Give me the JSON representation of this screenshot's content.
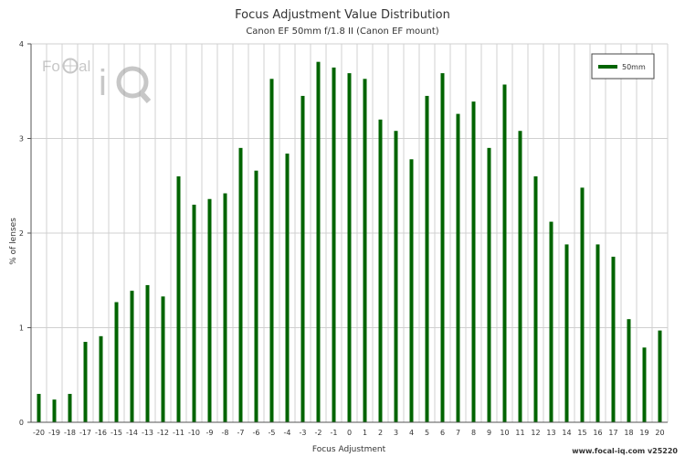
{
  "chart_data": {
    "type": "bar",
    "title": "Focus Adjustment Value Distribution",
    "subtitle": "Canon EF 50mm f/1.8 II (Canon EF mount)",
    "xlabel": "Focus Adjustment",
    "ylabel": "% of lenses",
    "ylim": [
      0,
      4
    ],
    "yticks": [
      0,
      1,
      2,
      3,
      4
    ],
    "grid": true,
    "legend_position": "top-right",
    "categories": [
      "-20",
      "-19",
      "-18",
      "-17",
      "-16",
      "-15",
      "-14",
      "-13",
      "-12",
      "-11",
      "-10",
      "-9",
      "-8",
      "-7",
      "-6",
      "-5",
      "-4",
      "-3",
      "-2",
      "-1",
      "0",
      "1",
      "2",
      "3",
      "4",
      "5",
      "6",
      "7",
      "8",
      "9",
      "10",
      "11",
      "12",
      "13",
      "14",
      "15",
      "16",
      "17",
      "18",
      "19",
      "20"
    ],
    "series": [
      {
        "name": "50mm",
        "color": "#006400",
        "values": [
          0.3,
          0.24,
          0.3,
          0.85,
          0.91,
          1.27,
          1.39,
          1.45,
          1.33,
          2.6,
          2.3,
          2.36,
          2.42,
          2.9,
          2.66,
          3.63,
          2.84,
          3.45,
          3.81,
          3.75,
          3.69,
          3.63,
          3.2,
          3.08,
          2.78,
          3.45,
          3.69,
          3.26,
          3.39,
          2.9,
          3.57,
          3.08,
          2.6,
          2.12,
          1.88,
          2.48,
          1.88,
          1.75,
          1.09,
          0.79,
          0.97
        ]
      }
    ]
  },
  "logo": {
    "text": "FoCal iQ"
  },
  "footer": {
    "text": "www.focal-iq.com  v25220"
  }
}
